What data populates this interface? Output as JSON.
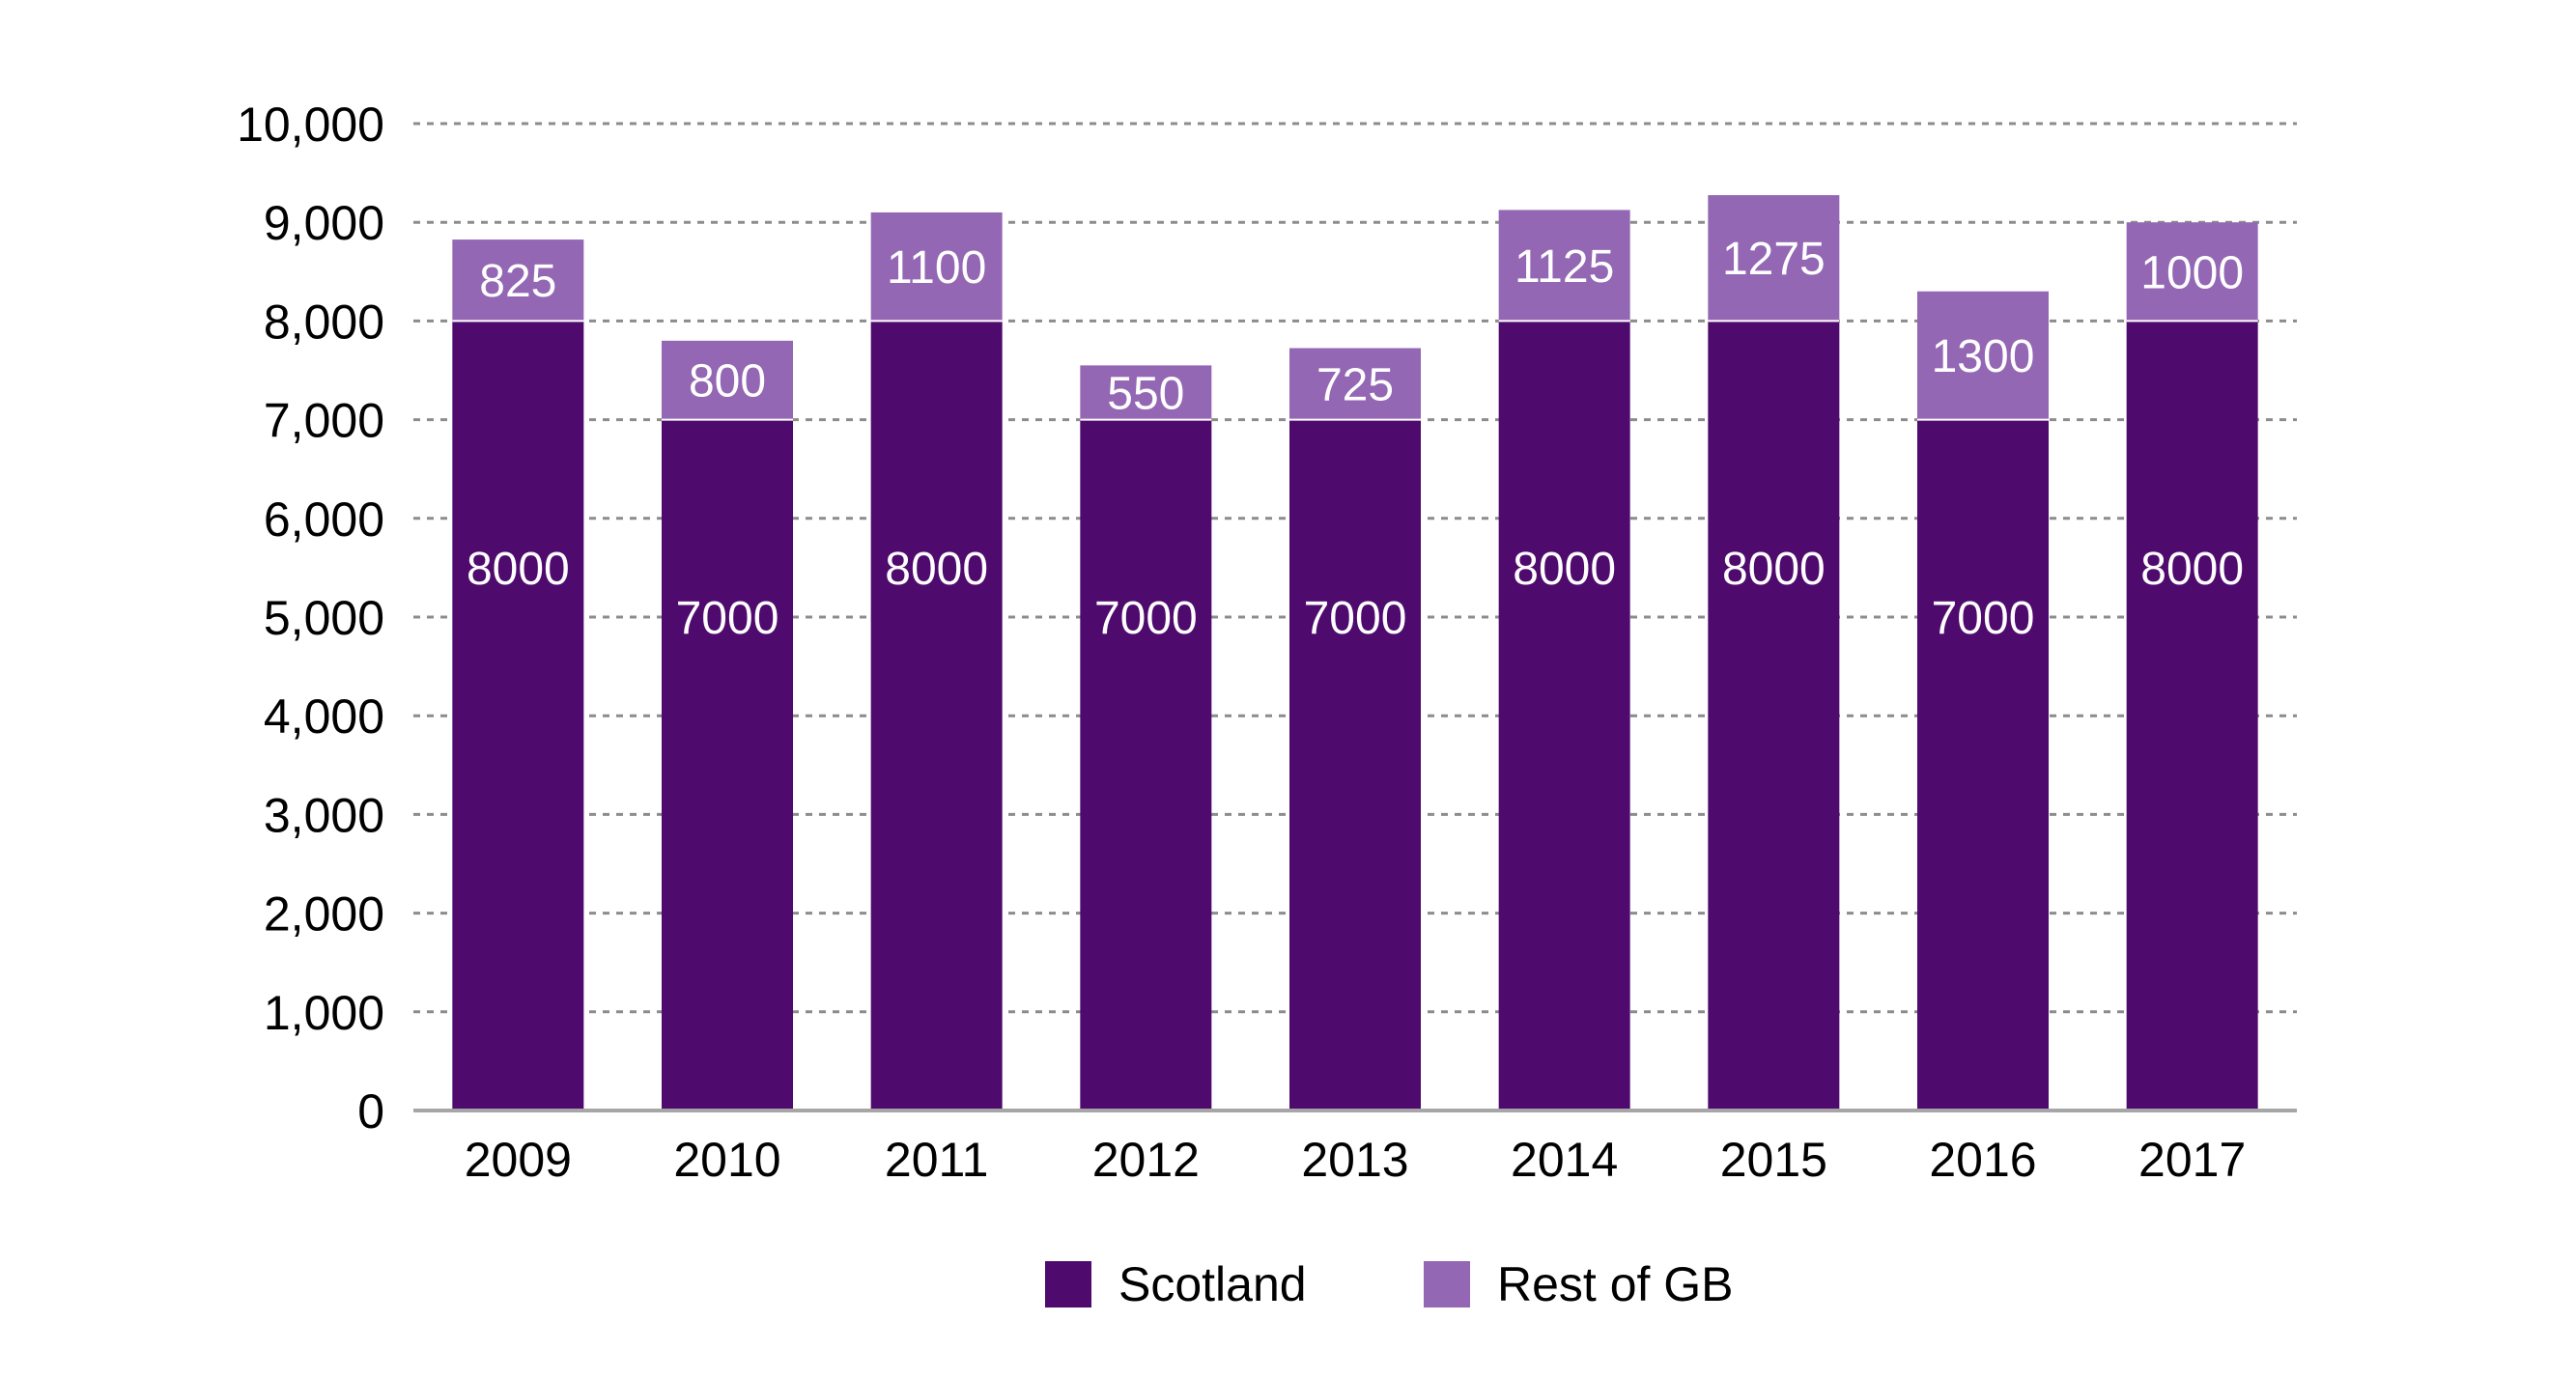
{
  "chart_data": {
    "type": "bar",
    "stacked": true,
    "categories": [
      "2009",
      "2010",
      "2011",
      "2012",
      "2013",
      "2014",
      "2015",
      "2016",
      "2017"
    ],
    "series": [
      {
        "name": "Scotland",
        "color": "#4f0a6e",
        "values": [
          8000,
          7000,
          8000,
          7000,
          7000,
          8000,
          8000,
          7000,
          8000
        ],
        "labels": [
          "8000",
          "7000",
          "8000",
          "7000",
          "7000",
          "8000",
          "8000",
          "7000",
          "8000"
        ]
      },
      {
        "name": "Rest of GB",
        "color": "#9467b4",
        "values": [
          825,
          800,
          1100,
          550,
          725,
          1125,
          1275,
          1300,
          1000
        ],
        "labels": [
          "825",
          "800",
          "1100",
          "550",
          "725",
          "1125",
          "1275",
          "1300",
          "1000"
        ]
      }
    ],
    "ylim": [
      0,
      10000
    ],
    "yticks": [
      0,
      1000,
      2000,
      3000,
      4000,
      5000,
      6000,
      7000,
      8000,
      9000,
      10000
    ],
    "ytick_labels": [
      "0",
      "1,000",
      "2,000",
      "3,000",
      "4,000",
      "5,000",
      "6,000",
      "7,000",
      "8,000",
      "9,000",
      "10,000"
    ],
    "grid": "horizontal dashed",
    "axis_color": "#a6a6a6",
    "grid_color": "#8c8c8c",
    "legend": {
      "position": "bottom-center",
      "items": [
        "Scotland",
        "Rest of GB"
      ]
    }
  }
}
